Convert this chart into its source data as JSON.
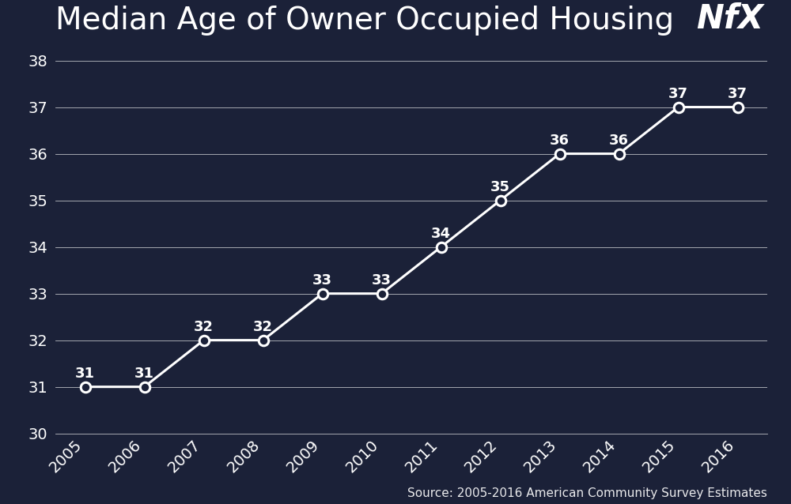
{
  "title": "Median Age of Owner Occupied Housing",
  "source_text": "Source: 2005-2016 American Community Survey Estimates",
  "years": [
    2005,
    2006,
    2007,
    2008,
    2009,
    2010,
    2011,
    2012,
    2013,
    2014,
    2015,
    2016
  ],
  "values": [
    31,
    31,
    32,
    32,
    33,
    33,
    34,
    35,
    36,
    36,
    37,
    37
  ],
  "ylim": [
    30,
    38
  ],
  "yticks": [
    30,
    31,
    32,
    33,
    34,
    35,
    36,
    37,
    38
  ],
  "background_color": "#1b2138",
  "line_color": "#ffffff",
  "marker_color": "#ffffff",
  "text_color": "#ffffff",
  "grid_color": "#ffffff",
  "title_fontsize": 28,
  "logo_fontsize": 30,
  "tick_fontsize": 14,
  "label_fontsize": 13,
  "source_fontsize": 11,
  "marker_size": 9,
  "line_width": 2.2
}
